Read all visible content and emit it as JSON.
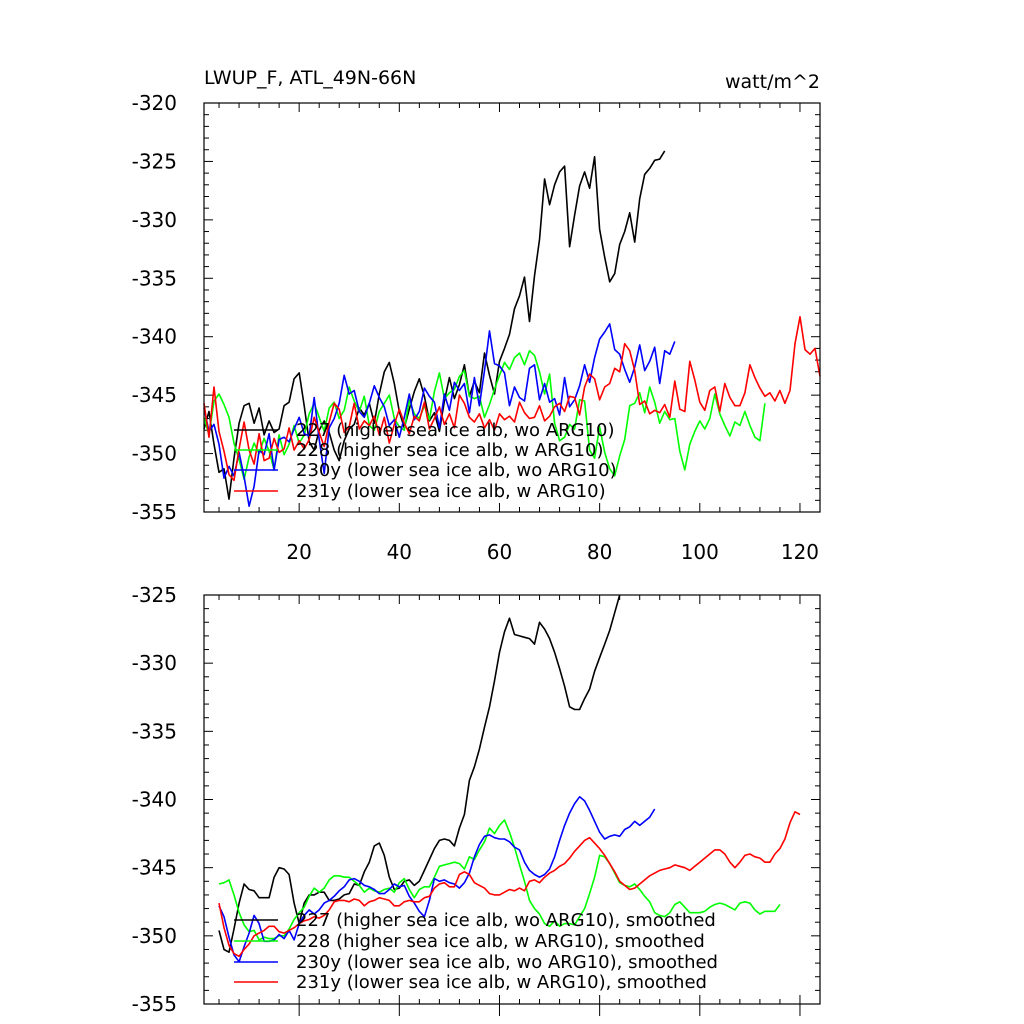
{
  "chart_data": [
    {
      "type": "line",
      "title": "LWUP_F, ATL_49N-66N",
      "units": "watt/m^2",
      "xlabel": "",
      "ylabel": "",
      "xlim": [
        1,
        124
      ],
      "ylim": [
        -355,
        -320
      ],
      "xticks": [
        20,
        40,
        60,
        80,
        100,
        120
      ],
      "yticks": [
        -320,
        -325,
        -330,
        -335,
        -340,
        -345,
        -350,
        -355
      ],
      "tick_labels_x": [
        "20",
        "40",
        "60",
        "80",
        "100",
        "120"
      ],
      "tick_labels_y": [
        "-320",
        "-325",
        "-330",
        "-335",
        "-340",
        "-345",
        "-350",
        "-355"
      ],
      "legend_position": "bottom-left",
      "series": [
        {
          "name": "227 (higher sea ice alb, wo ARG10)",
          "color": "#000000",
          "x_start": 1,
          "values": [
            -347.9,
            -346.4,
            -349.2,
            -351.6,
            -351.3,
            -353.9,
            -350.4,
            -347.4,
            -345.9,
            -345.7,
            -347.4,
            -346.1,
            -348.4,
            -347.2,
            -348.2,
            -347.9,
            -345.9,
            -345.6,
            -343.6,
            -343.1,
            -345.9,
            -349.0,
            -349.7,
            -348.0,
            -347.2,
            -348.2,
            -349.7,
            -350.6,
            -348.9,
            -347.9,
            -347.5,
            -346.1,
            -346.7,
            -345.7,
            -347.4,
            -344.9,
            -343.0,
            -342.2,
            -344.0,
            -346.4,
            -347.8,
            -346.2,
            -344.7,
            -343.6,
            -345.1,
            -347.2,
            -346.5,
            -348.1,
            -345.5,
            -343.5,
            -345.3,
            -344.1,
            -342.4,
            -345.1,
            -343.8,
            -344.8,
            -341.4,
            -343.3,
            -344.9,
            -342.1,
            -341.0,
            -339.8,
            -337.6,
            -336.5,
            -334.9,
            -338.7,
            -334.8,
            -331.7,
            -326.5,
            -328.7,
            -327.0,
            -325.9,
            -325.4,
            -332.3,
            -329.6,
            -327.1,
            -325.9,
            -327.3,
            -324.6,
            -330.8,
            -333.2,
            -335.3,
            -334.6,
            -332.1,
            -331.0,
            -329.4,
            -331.9,
            -328.2,
            -326.1,
            -325.6,
            -324.9,
            -324.8,
            -324.1
          ]
        },
        {
          "name": "228 (higher sea ice alb, w ARG10)",
          "color": "#00ff00",
          "x_start": 1,
          "values": [
            -346.9,
            -348.4,
            -345.5,
            -344.9,
            -345.8,
            -346.9,
            -349.1,
            -350.5,
            -352.2,
            -350.3,
            -349.1,
            -350.0,
            -348.7,
            -349.8,
            -351.4,
            -348.4,
            -350.1,
            -349.2,
            -347.6,
            -349.1,
            -348.4,
            -346.6,
            -345.7,
            -346.9,
            -348.1,
            -346.1,
            -345.6,
            -347.0,
            -346.3,
            -344.3,
            -345.5,
            -346.4,
            -345.1,
            -347.6,
            -348.0,
            -346.4,
            -345.7,
            -345.0,
            -347.0,
            -347.7,
            -348.0,
            -345.4,
            -346.6,
            -347.0,
            -345.9,
            -347.1,
            -344.7,
            -343.1,
            -345.3,
            -344.8,
            -344.5,
            -343.4,
            -342.9,
            -345.1,
            -345.3,
            -345.1,
            -346.9,
            -345.8,
            -344.5,
            -343.3,
            -342.2,
            -342.8,
            -341.8,
            -341.4,
            -342.4,
            -341.2,
            -341.6,
            -343.0,
            -344.9,
            -343.2,
            -347.4,
            -348.9,
            -348.6,
            -347.5,
            -347.9,
            -345.4,
            -345.5,
            -349.7,
            -350.4,
            -347.7,
            -349.9,
            -351.3,
            -351.9,
            -350.2,
            -348.8,
            -345.9,
            -345.7,
            -344.8,
            -346.5,
            -344.3,
            -345.6,
            -347.4,
            -346.4,
            -347.1,
            -347.0,
            -349.8,
            -351.4,
            -349.2,
            -348.1,
            -347.2,
            -347.9,
            -347.0,
            -344.9,
            -346.6,
            -347.6,
            -348.5,
            -347.3,
            -347.6,
            -346.4,
            -347.6,
            -348.6,
            -348.9,
            -345.7
          ]
        },
        {
          "name": "230y (lower sea ice alb, wo ARG10)",
          "color": "#0000ff",
          "x_start": 1,
          "values": [
            -346.1,
            -348.1,
            -347.5,
            -349.2,
            -352.1,
            -351.1,
            -351.9,
            -349.9,
            -352.0,
            -354.5,
            -352.8,
            -349.7,
            -350.1,
            -348.3,
            -351.4,
            -348.8,
            -348.6,
            -349.0,
            -347.9,
            -346.9,
            -348.3,
            -348.5,
            -345.2,
            -348.8,
            -351.7,
            -347.8,
            -347.0,
            -345.7,
            -343.3,
            -344.9,
            -344.6,
            -346.4,
            -346.9,
            -345.7,
            -344.2,
            -345.2,
            -346.0,
            -347.6,
            -347.1,
            -348.6,
            -346.9,
            -344.9,
            -347.1,
            -346.4,
            -344.4,
            -345.1,
            -345.6,
            -347.8,
            -344.9,
            -346.3,
            -343.9,
            -344.6,
            -344.0,
            -346.5,
            -343.5,
            -345.9,
            -342.9,
            -339.5,
            -342.3,
            -342.5,
            -343.1,
            -345.9,
            -344.3,
            -345.2,
            -345.5,
            -342.7,
            -342.4,
            -345.4,
            -344.0,
            -345.6,
            -345.3,
            -346.7,
            -343.5,
            -346.0,
            -345.4,
            -344.2,
            -342.4,
            -343.9,
            -341.8,
            -340.2,
            -339.6,
            -338.9,
            -341.1,
            -341.5,
            -342.8,
            -343.9,
            -342.6,
            -340.7,
            -342.9,
            -342.1,
            -340.9,
            -344.0,
            -341.2,
            -341.5,
            -340.4
          ]
        },
        {
          "name": "231y (lower sea ice alb, w ARG10)",
          "color": "#ff0000",
          "x_start": 1,
          "values": [
            -345.7,
            -348.6,
            -344.3,
            -348.1,
            -349.8,
            -351.8,
            -352.3,
            -349.6,
            -347.3,
            -349.7,
            -350.9,
            -348.3,
            -350.6,
            -350.4,
            -348.7,
            -349.9,
            -349.6,
            -347.8,
            -349.7,
            -348.9,
            -349.6,
            -348.8,
            -346.9,
            -348.2,
            -349.4,
            -347.3,
            -345.7,
            -346.2,
            -348.2,
            -347.7,
            -345.7,
            -347.9,
            -347.2,
            -347.6,
            -346.8,
            -348.4,
            -346.9,
            -349.1,
            -347.5,
            -346.2,
            -347.4,
            -348.3,
            -346.8,
            -347.2,
            -345.6,
            -347.9,
            -347.0,
            -346.0,
            -347.5,
            -346.6,
            -347.8,
            -345.0,
            -345.7,
            -346.9,
            -347.3,
            -346.6,
            -347.8,
            -347.1,
            -348.0,
            -346.6,
            -347.1,
            -346.8,
            -347.3,
            -345.6,
            -346.5,
            -347.0,
            -346.9,
            -345.9,
            -347.2,
            -346.8,
            -346.0,
            -345.7,
            -346.4,
            -345.1,
            -345.2,
            -346.7,
            -344.3,
            -343.2,
            -343.6,
            -345.4,
            -344.3,
            -344.0,
            -342.7,
            -343.0,
            -340.6,
            -341.2,
            -342.9,
            -345.8,
            -345.5,
            -346.6,
            -346.3,
            -346.5,
            -345.8,
            -346.9,
            -343.8,
            -346.2,
            -346.4,
            -342.1,
            -343.7,
            -345.6,
            -346.3,
            -344.6,
            -344.3,
            -346.4,
            -344.0,
            -345.2,
            -345.9,
            -345.9,
            -344.8,
            -342.4,
            -343.5,
            -344.4,
            -345.1,
            -344.8,
            -345.5,
            -344.6,
            -345.7,
            -344.6,
            -340.6,
            -338.3,
            -341.1,
            -341.5,
            -341.0,
            -343.4
          ]
        }
      ]
    },
    {
      "type": "line",
      "title": "",
      "xlim": [
        1,
        124
      ],
      "ylim": [
        -355,
        -325
      ],
      "xticks": [
        20,
        40,
        60,
        80,
        100,
        120
      ],
      "yticks": [
        -325,
        -330,
        -335,
        -340,
        -345,
        -350,
        -355
      ],
      "tick_labels_y": [
        "-325",
        "-330",
        "-335",
        "-340",
        "-345",
        "-350",
        "-355"
      ],
      "legend_position": "bottom-left",
      "series": [
        {
          "name": "227 (higher sea ice alb, wo ARG10), smoothed",
          "color": "#000000",
          "x_start": 4,
          "values": [
            -349.6,
            -351.0,
            -351.2,
            -349.5,
            -347.6,
            -346.2,
            -346.6,
            -346.7,
            -347.2,
            -347.2,
            -347.2,
            -345.7,
            -345.0,
            -345.1,
            -345.5,
            -347.6,
            -349.1,
            -347.6,
            -347.0,
            -347.0,
            -346.8,
            -346.8,
            -347.4,
            -347.4,
            -347.3,
            -347.0,
            -346.9,
            -346.2,
            -346.3,
            -345.3,
            -344.6,
            -343.4,
            -343.2,
            -344.1,
            -345.7,
            -346.6,
            -346.5,
            -346.0,
            -345.9,
            -346.3,
            -346.0,
            -345.2,
            -344.4,
            -343.6,
            -343.0,
            -342.9,
            -343.0,
            -343.4,
            -342.1,
            -341.1,
            -338.6,
            -337.6,
            -336.3,
            -334.7,
            -333.2,
            -331.3,
            -329.2,
            -327.7,
            -326.7,
            -327.9,
            -328.0,
            -328.1,
            -328.2,
            -328.6,
            -327.0,
            -327.5,
            -328.2,
            -329.2,
            -330.4,
            -331.7,
            -333.2,
            -333.4,
            -333.4,
            -332.6,
            -331.9,
            -330.6,
            -329.6,
            -328.6,
            -327.6,
            -326.3,
            -325.0
          ]
        },
        {
          "name": "228 (higher sea ice alb, w ARG10), smoothed",
          "color": "#00ff00",
          "x_start": 4,
          "values": [
            -346.2,
            -346.1,
            -345.9,
            -347.0,
            -348.3,
            -349.2,
            -349.7,
            -349.6,
            -350.3,
            -350.1,
            -350.2,
            -350.2,
            -350.0,
            -350.0,
            -349.5,
            -348.8,
            -348.3,
            -347.9,
            -347.1,
            -346.5,
            -346.8,
            -346.5,
            -345.9,
            -345.6,
            -345.6,
            -345.7,
            -345.7,
            -346.0,
            -346.3,
            -346.8,
            -346.5,
            -346.7,
            -346.8,
            -346.6,
            -346.5,
            -346.8,
            -346.1,
            -345.8,
            -346.6,
            -347.2,
            -346.6,
            -346.4,
            -346.4,
            -345.7,
            -344.9,
            -344.8,
            -344.7,
            -344.6,
            -344.7,
            -345.1,
            -344.2,
            -344.4,
            -343.7,
            -343.1,
            -342.1,
            -342.5,
            -341.9,
            -341.5,
            -342.4,
            -343.5,
            -344.8,
            -346.0,
            -347.4,
            -348.0,
            -348.4,
            -349.1,
            -349.3,
            -348.9,
            -349.3,
            -349.1,
            -349.1,
            -349.2,
            -348.6,
            -348.0,
            -346.9,
            -345.7,
            -344.1,
            -344.2,
            -344.7,
            -345.4,
            -346.1,
            -346.3,
            -346.4,
            -346.2,
            -346.6,
            -347.1,
            -347.5,
            -348.3,
            -348.5,
            -348.6,
            -348.3,
            -347.7,
            -347.5,
            -347.9,
            -348.3,
            -348.3,
            -348.3,
            -348.2,
            -347.9,
            -347.7,
            -347.6,
            -347.7,
            -347.9,
            -348.1,
            -347.6,
            -347.5,
            -347.6,
            -348.1,
            -348.4,
            -348.2,
            -348.2,
            -348.2,
            -347.7
          ]
        },
        {
          "name": "230y (lower sea ice alb, wo ARG10), smoothed",
          "color": "#0000ff",
          "x_start": 4,
          "values": [
            -347.8,
            -348.6,
            -350.1,
            -351.4,
            -351.9,
            -350.8,
            -349.8,
            -348.5,
            -349.1,
            -350.4,
            -350.4,
            -350.3,
            -349.9,
            -350.2,
            -349.6,
            -350.3,
            -349.1,
            -348.5,
            -348.1,
            -348.4,
            -348.1,
            -347.6,
            -347.4,
            -347.1,
            -346.7,
            -346.4,
            -345.9,
            -345.8,
            -346.0,
            -346.3,
            -346.4,
            -346.6,
            -346.9,
            -346.9,
            -346.6,
            -346.2,
            -346.4,
            -346.3,
            -347.1,
            -347.6,
            -348.2,
            -348.6,
            -347.4,
            -345.8,
            -346.0,
            -345.9,
            -346.1,
            -346.2,
            -346.5,
            -346.1,
            -345.4,
            -344.2,
            -343.3,
            -342.7,
            -342.6,
            -342.8,
            -342.9,
            -342.9,
            -343.1,
            -343.5,
            -343.7,
            -344.6,
            -345.2,
            -345.5,
            -345.7,
            -345.5,
            -345.1,
            -344.2,
            -343.0,
            -341.9,
            -341.0,
            -340.3,
            -339.8,
            -340.1,
            -340.8,
            -341.6,
            -342.4,
            -342.9,
            -342.7,
            -342.6,
            -342.7,
            -342.2,
            -342.0,
            -341.6,
            -341.9,
            -341.6,
            -341.3,
            -340.7
          ]
        },
        {
          "name": "231y (lower sea ice alb, w ARG10), smoothed",
          "color": "#ff0000",
          "x_start": 4,
          "values": [
            -347.6,
            -349.4,
            -350.7,
            -351.3,
            -351.5,
            -351.0,
            -350.6,
            -350.0,
            -349.8,
            -349.6,
            -349.3,
            -349.3,
            -349.7,
            -349.8,
            -349.6,
            -349.4,
            -349.1,
            -348.9,
            -348.8,
            -348.6,
            -348.7,
            -348.5,
            -348.1,
            -347.5,
            -347.4,
            -347.4,
            -347.5,
            -347.3,
            -347.4,
            -347.8,
            -347.5,
            -347.4,
            -347.2,
            -347.3,
            -347.4,
            -347.8,
            -347.8,
            -347.5,
            -347.4,
            -347.5,
            -347.5,
            -347.2,
            -347.1,
            -346.5,
            -346.2,
            -346.1,
            -346.4,
            -346.4,
            -345.5,
            -345.3,
            -345.5,
            -346.1,
            -346.3,
            -346.5,
            -346.9,
            -347.0,
            -347.0,
            -346.8,
            -346.6,
            -346.7,
            -346.5,
            -346.7,
            -346.0,
            -345.9,
            -346.1,
            -345.7,
            -345.4,
            -345.2,
            -344.9,
            -344.7,
            -344.3,
            -343.8,
            -343.4,
            -343.0,
            -342.8,
            -343.2,
            -343.6,
            -344.1,
            -344.7,
            -345.3,
            -346.0,
            -346.3,
            -346.6,
            -346.5,
            -346.2,
            -345.9,
            -345.6,
            -345.4,
            -345.2,
            -345.1,
            -345.0,
            -344.8,
            -344.9,
            -345.0,
            -345.2,
            -344.9,
            -344.6,
            -344.3,
            -344.0,
            -343.7,
            -343.7,
            -344.0,
            -344.6,
            -345.0,
            -344.6,
            -344.1,
            -344.0,
            -344.2,
            -344.3,
            -344.6,
            -344.6,
            -344.0,
            -343.6,
            -342.9,
            -341.7,
            -340.9,
            -341.1
          ]
        }
      ]
    }
  ]
}
